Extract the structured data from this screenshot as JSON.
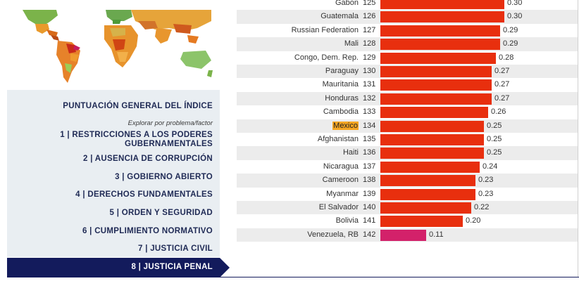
{
  "colors": {
    "nav": "#131b5c",
    "highlight": "#f5a623",
    "bar_red": "#e82f0e",
    "bar_pink": "#d3216a"
  },
  "menu": {
    "header": "PUNTUACIÓN GENERAL DEL ÍNDICE",
    "subheader": "Explorar por problema/factor",
    "items": [
      {
        "label_line1": "1 | RESTRICCIONES A LOS PODERES",
        "label_line2": "GUBERNAMENTALES"
      },
      {
        "label": "2 | AUSENCIA DE CORRUPCIÓN"
      },
      {
        "label": "3 | GOBIERNO ABIERTO"
      },
      {
        "label": "4 | DERECHOS FUNDAMENTALES"
      },
      {
        "label": "5 | ORDEN Y SEGURIDAD"
      },
      {
        "label": "6 | CUMPLIMIENTO NORMATIVO"
      },
      {
        "label": "7 | JUSTICIA CIVIL"
      }
    ],
    "active": {
      "label": "8 | JUSTICIA PENAL"
    }
  },
  "chart_data": {
    "type": "bar",
    "categories": [
      "Gabon",
      "Guatemala",
      "Russian Federation",
      "Mali",
      "Congo, Dem. Rep.",
      "Paraguay",
      "Mauritania",
      "Honduras",
      "Cambodia",
      "Mexico",
      "Afghanistan",
      "Haiti",
      "Nicaragua",
      "Cameroon",
      "Myanmar",
      "El Salvador",
      "Bolivia",
      "Venezuela, RB"
    ],
    "ranks": [
      125,
      126,
      127,
      128,
      129,
      130,
      131,
      132,
      133,
      134,
      135,
      136,
      137,
      138,
      139,
      140,
      141,
      142
    ],
    "values": [
      0.3,
      0.3,
      0.29,
      0.29,
      0.28,
      0.27,
      0.27,
      0.27,
      0.26,
      0.25,
      0.25,
      0.25,
      0.24,
      0.23,
      0.23,
      0.22,
      0.2,
      0.11
    ],
    "value_labels": [
      "0.30",
      "0.30",
      "0.29",
      "0.29",
      "0.28",
      "0.27",
      "0.27",
      "0.27",
      "0.26",
      "0.25",
      "0.25",
      "0.25",
      "0.24",
      "0.23",
      "0.23",
      "0.22",
      "0.20",
      "0.11"
    ],
    "highlighted": "Mexico",
    "orientation": "horizontal",
    "xlim": [
      0,
      0.3
    ]
  }
}
